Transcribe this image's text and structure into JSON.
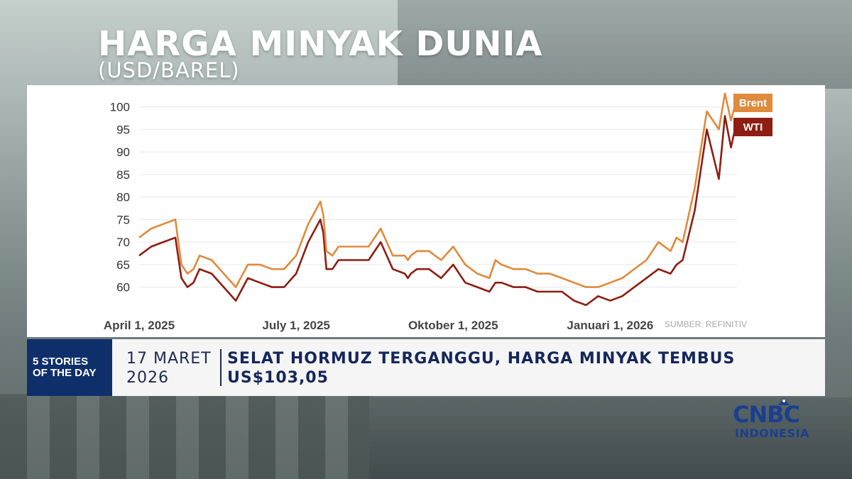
{
  "title": "HARGA MINYAK DUNIA",
  "subtitle": "(USD/BAREL)",
  "source": "SUMBER: REFINITIV",
  "ticker": {
    "badge_line1": "5 STORIES",
    "badge_line2": "OF THE DAY",
    "date_line1": "17 MARET",
    "date_line2": "2026",
    "headline_line1": "SELAT HORMUZ TERGANGGU, HARGA MINYAK TEMBUS",
    "headline_line2": "US$103,05"
  },
  "logo": {
    "main": "CNBC",
    "sub": "INDONESIA"
  },
  "colors": {
    "brent": "#e08a3c",
    "wti": "#8e1d12",
    "badge": "#0f2f6b",
    "text_navy": "#14275c"
  },
  "chart_data": {
    "type": "line",
    "title": "HARGA MINYAK DUNIA",
    "ylabel": "(USD/BAREL)",
    "ylim": [
      56,
      102
    ],
    "yticks": [
      60,
      65,
      70,
      75,
      80,
      85,
      90,
      95,
      100
    ],
    "xlim": [
      0,
      99
    ],
    "xticks": [
      {
        "x": 0,
        "label": "April 1, 2025"
      },
      {
        "x": 26,
        "label": "July 1, 2025"
      },
      {
        "x": 52,
        "label": "Oktober 1, 2025"
      },
      {
        "x": 78,
        "label": "Januari 1, 2026"
      }
    ],
    "grid": true,
    "legend": "top-right",
    "series": [
      {
        "name": "Brent",
        "color": "#e08a3c",
        "x": [
          0,
          2,
          4,
          6,
          7,
          8,
          9,
          10,
          12,
          14,
          16,
          18,
          20,
          22,
          24,
          26,
          28,
          30,
          30.5,
          31,
          32,
          33,
          34,
          36,
          38,
          40,
          42,
          44,
          44.5,
          45,
          46,
          48,
          50,
          52,
          54,
          56,
          58,
          59,
          60,
          62,
          64,
          66,
          68,
          70,
          72,
          74,
          76,
          78,
          80,
          82,
          84,
          86,
          88,
          89,
          90,
          92,
          94,
          96,
          97,
          98,
          99
        ],
        "values": [
          71,
          73,
          74,
          75,
          65,
          63,
          64,
          67,
          66,
          63,
          60,
          65,
          65,
          64,
          64,
          67,
          74,
          79,
          76,
          68,
          67,
          69,
          69,
          69,
          69,
          73,
          67,
          67,
          66,
          67,
          68,
          68,
          66,
          69,
          65,
          63,
          62,
          66,
          65,
          64,
          64,
          63,
          63,
          62,
          61,
          60,
          60,
          61,
          62,
          64,
          66,
          70,
          68,
          71,
          70,
          82,
          99,
          95,
          103,
          97,
          102
        ]
      },
      {
        "name": "WTI",
        "color": "#8e1d12",
        "x": [
          0,
          2,
          4,
          6,
          7,
          8,
          9,
          10,
          12,
          14,
          16,
          18,
          20,
          22,
          24,
          26,
          28,
          30,
          30.5,
          31,
          32,
          33,
          34,
          36,
          38,
          40,
          42,
          44,
          44.5,
          45,
          46,
          48,
          50,
          52,
          54,
          56,
          58,
          59,
          60,
          62,
          64,
          66,
          68,
          70,
          72,
          74,
          76,
          78,
          80,
          82,
          84,
          86,
          88,
          89,
          90,
          92,
          94,
          96,
          97,
          98,
          99
        ],
        "values": [
          67,
          69,
          70,
          71,
          62,
          60,
          61,
          64,
          63,
          60,
          57,
          62,
          61,
          60,
          60,
          63,
          70,
          75,
          72,
          64,
          64,
          66,
          66,
          66,
          66,
          70,
          64,
          63,
          62,
          63,
          64,
          64,
          62,
          65,
          61,
          60,
          59,
          61,
          61,
          60,
          60,
          59,
          59,
          59,
          57,
          56,
          58,
          57,
          58,
          60,
          62,
          64,
          63,
          65,
          66,
          77,
          95,
          84,
          98,
          91,
          97
        ]
      }
    ]
  }
}
